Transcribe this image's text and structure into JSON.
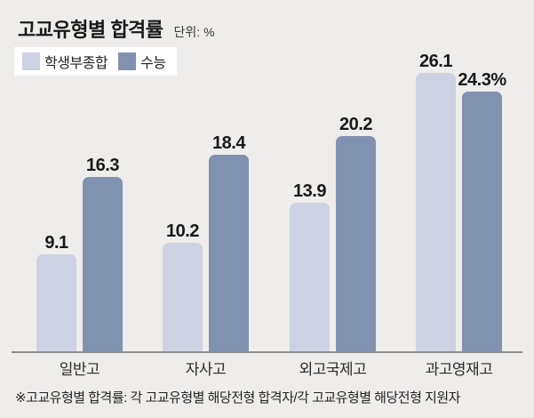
{
  "header": {
    "title": "고교유형별 합격률",
    "unit_label": "단위: %"
  },
  "legend": [
    {
      "label": "학생부종합",
      "color": "#ccd2e1"
    },
    {
      "label": "수능",
      "color": "#8191b0"
    }
  ],
  "chart_data": {
    "type": "bar",
    "title": "고교유형별 합격률",
    "unit": "%",
    "categories": [
      "일반고",
      "자사고",
      "외고국제고",
      "과고영재고"
    ],
    "series": [
      {
        "name": "학생부종합",
        "color": "#ccd2e1",
        "values": [
          9.1,
          10.2,
          13.9,
          26.1
        ]
      },
      {
        "name": "수능",
        "color": "#8191b0",
        "values": [
          16.3,
          18.4,
          20.2,
          24.3
        ]
      }
    ],
    "value_labels": [
      [
        "9.1",
        "16.3"
      ],
      [
        "10.2",
        "18.4"
      ],
      [
        "13.9",
        "20.2"
      ],
      [
        "26.1",
        "24.3%"
      ]
    ],
    "ylim": [
      0,
      28
    ],
    "grid": false,
    "legend_position": "top-left",
    "axis_color": "#8f8f8f",
    "background_color": "#eeedeb"
  },
  "footnote": "※고교유형별 합격률: 각 고교유형별 해당전형 합격자/각 고교유형별 해당전형 지원자"
}
